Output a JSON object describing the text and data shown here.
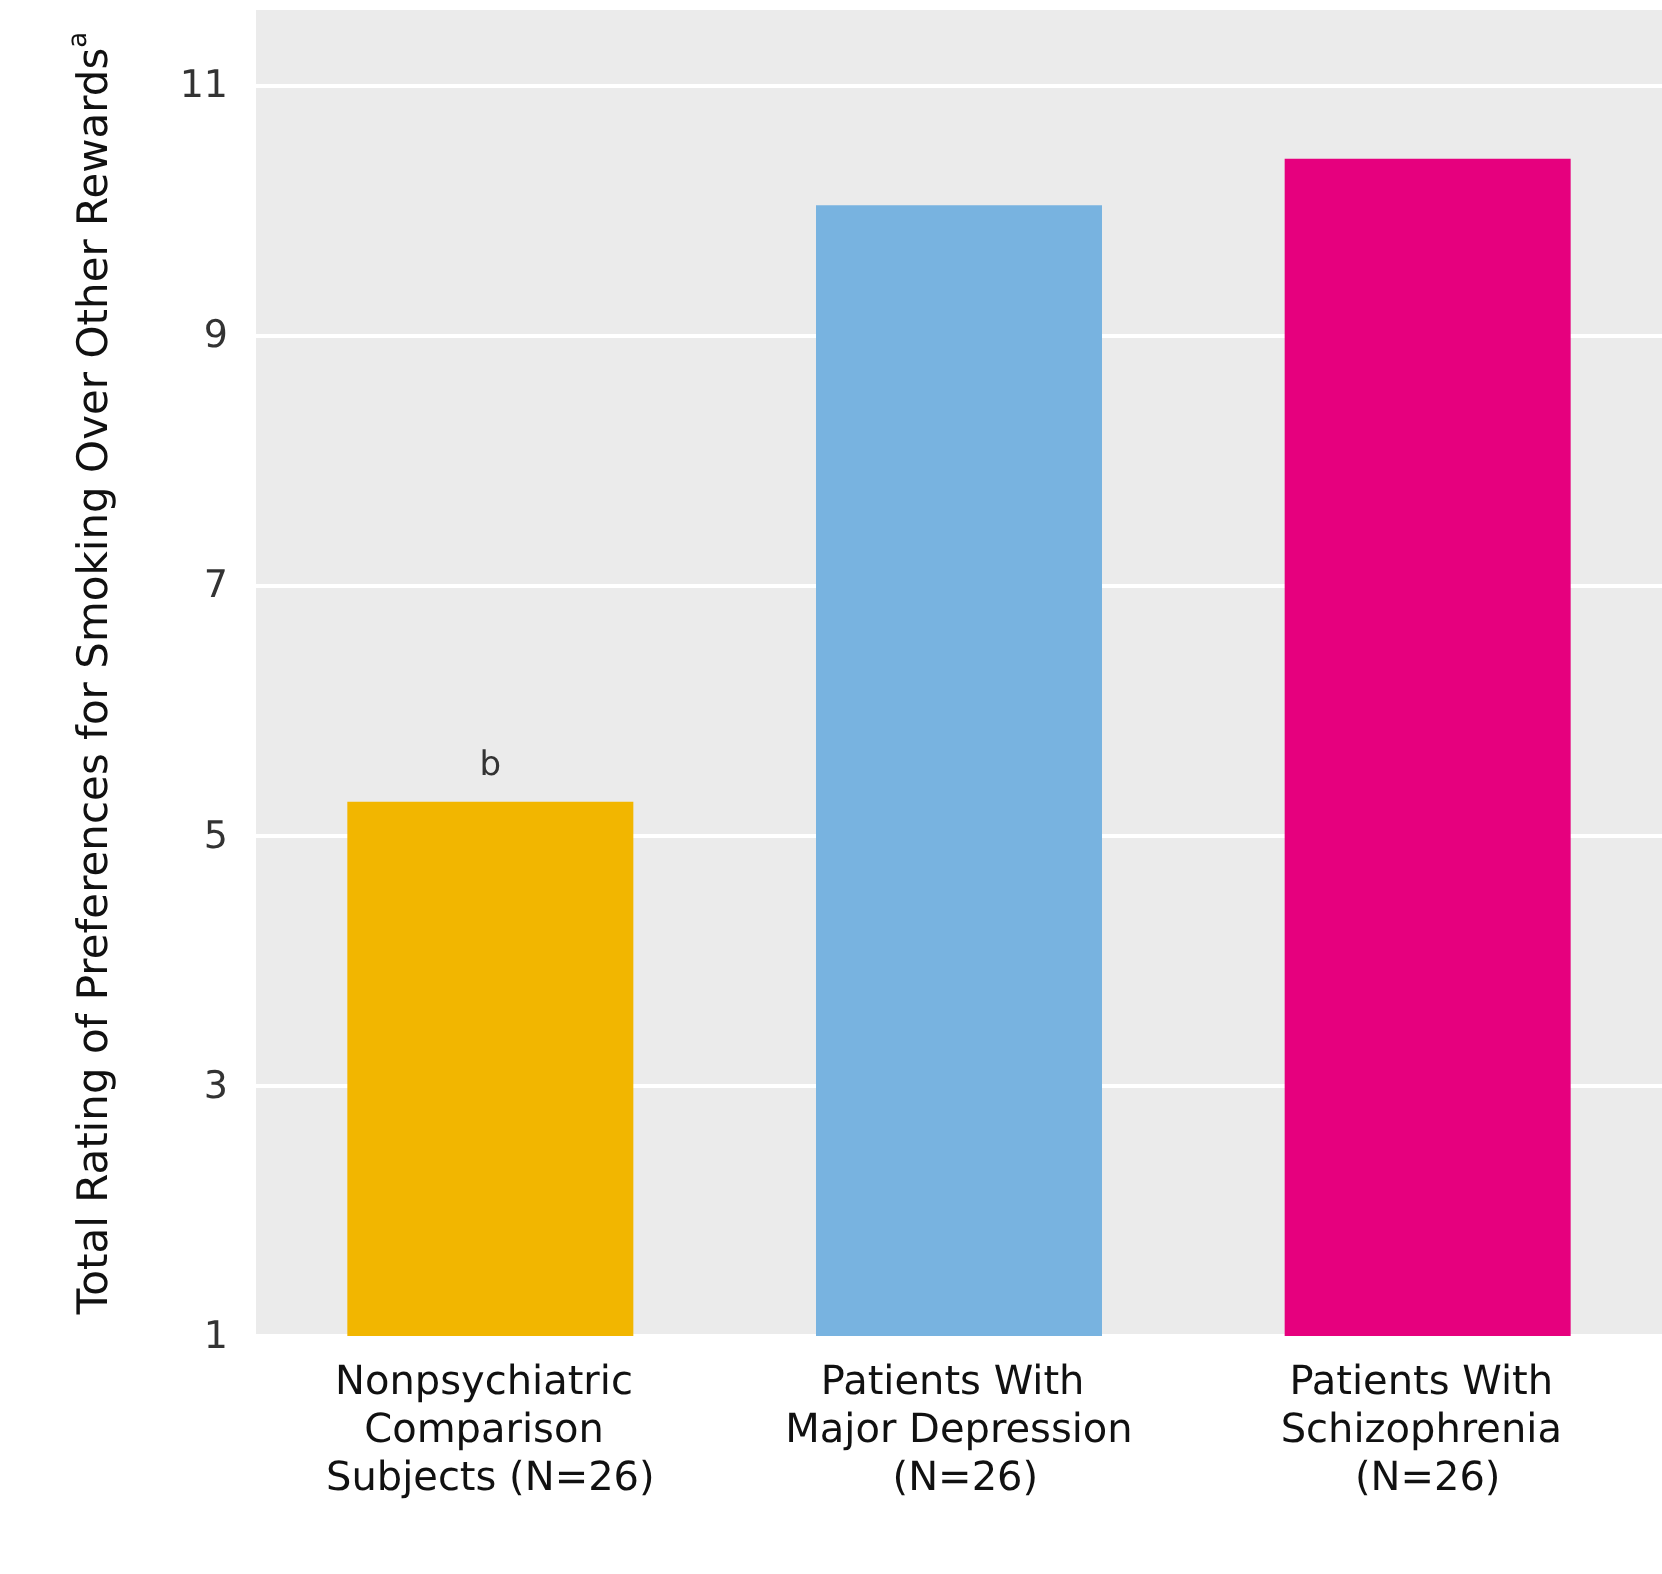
{
  "chart_data": {
    "type": "bar",
    "categories": [
      "Nonpsychiatric Comparison Subjects (N=26)",
      "Patients With Major Depression (N=26)",
      "Patients With Schizophrenia (N=26)"
    ],
    "values": [
      5.27,
      10.04,
      10.41
    ],
    "colors": [
      "#f2b600",
      "#78b3e0",
      "#e6007e"
    ],
    "ylabel": "Total Rating of Preferences for Smoking Over Other Rewards$^{a}$",
    "ylim": [
      1,
      11.6
    ],
    "yticks": [
      1,
      3,
      5,
      7,
      9,
      11
    ],
    "grid": "y",
    "annotations": [
      {
        "text": "b",
        "x": "Nonpsychiatric Comparison Subjects (N=26)",
        "y": 5.27
      }
    ]
  }
}
